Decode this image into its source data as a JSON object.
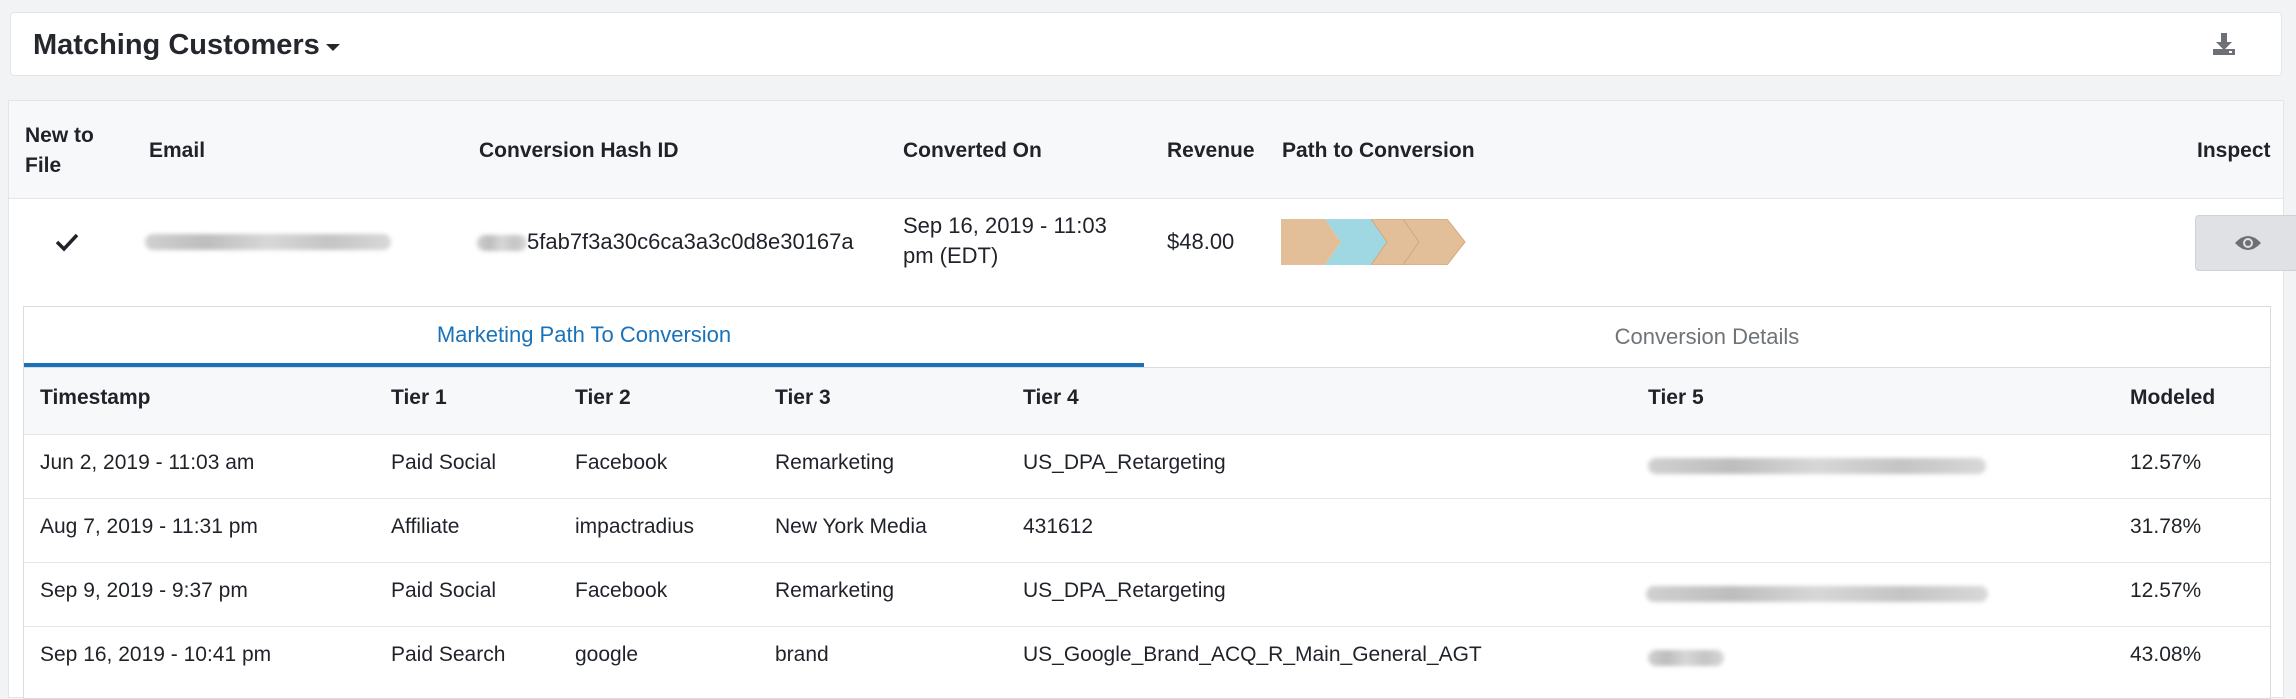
{
  "header": {
    "title": "Matching Customers"
  },
  "table": {
    "columns": {
      "new_to_file": "New to File",
      "email": "Email",
      "hash_id": "Conversion Hash ID",
      "converted_on": "Converted On",
      "revenue": "Revenue",
      "path": "Path to Conversion",
      "inspect": "Inspect"
    },
    "row": {
      "hash_id": "5fab7f3a30c6ca3a3c0d8e30167a",
      "converted_on_line1": "Sep 16, 2019 - 11:03",
      "converted_on_line2": "pm (EDT)",
      "revenue": "$48.00"
    }
  },
  "detail": {
    "tabs": [
      "Marketing Path To Conversion",
      "Conversion Details"
    ],
    "columns": [
      "Timestamp",
      "Tier 1",
      "Tier 2",
      "Tier 3",
      "Tier 4",
      "Tier 5",
      "Modeled"
    ],
    "rows": [
      {
        "timestamp": "Jun 2, 2019 - 11:03 am",
        "tier1": "Paid Social",
        "tier2": "Facebook",
        "tier3": "Remarketing",
        "tier4": "US_DPA_Retargeting",
        "modeled": "12.57%"
      },
      {
        "timestamp": "Aug 7, 2019 - 11:31 pm",
        "tier1": "Affiliate",
        "tier2": "impactradius",
        "tier3": "New York Media",
        "tier4": "431612",
        "modeled": "31.78%"
      },
      {
        "timestamp": "Sep 9, 2019 - 9:37 pm",
        "tier1": "Paid Social",
        "tier2": "Facebook",
        "tier3": "Remarketing",
        "tier4": "US_DPA_Retargeting",
        "modeled": "12.57%"
      },
      {
        "timestamp": "Sep 16, 2019 - 10:41 pm",
        "tier1": "Paid Search",
        "tier2": "google",
        "tier3": "brand",
        "tier4": "US_Google_Brand_ACQ_R_Main_General_AGT",
        "modeled": "43.08%"
      }
    ]
  },
  "colors": {
    "accent": "#1a72b8",
    "path_tan": "#e2bf98",
    "path_blue": "#9fd8e3"
  }
}
